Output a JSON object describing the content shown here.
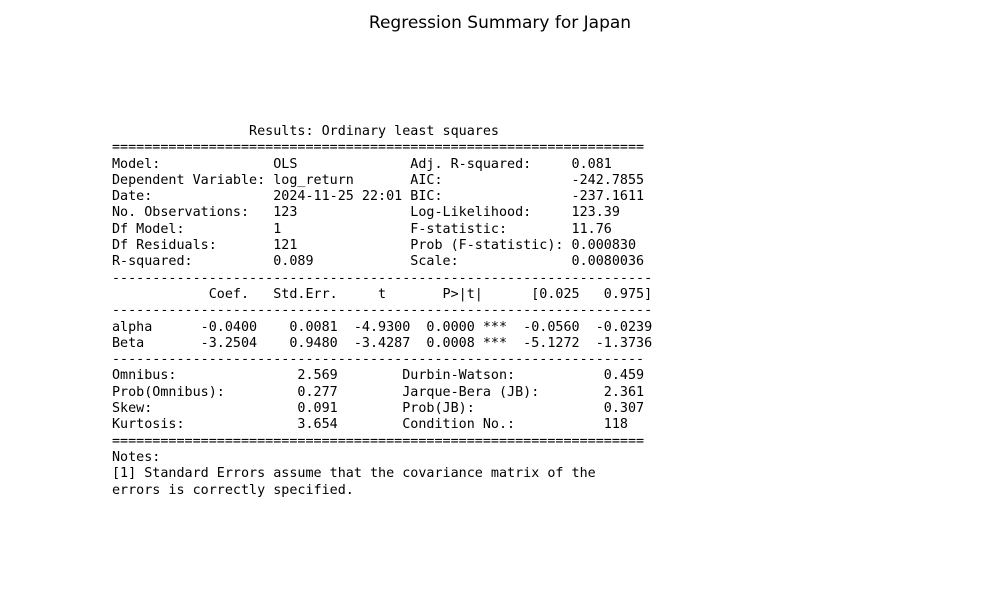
{
  "title": "Regression Summary for Japan",
  "summary_lines": [
    "                 Results: Ordinary least squares",
    "==================================================================",
    "Model:              OLS              Adj. R-squared:     0.081",
    "Dependent Variable: log_return       AIC:                -242.7855",
    "Date:               2024-11-25 22:01 BIC:                -237.1611",
    "No. Observations:   123              Log-Likelihood:     123.39",
    "Df Model:           1                F-statistic:        11.76",
    "Df Residuals:       121              Prob (F-statistic): 0.000830",
    "R-squared:          0.089            Scale:              0.0080036",
    "-------------------------------------------------------------------",
    "            Coef.   Std.Err.     t       P>|t|      [0.025   0.975]",
    "-------------------------------------------------------------------",
    "alpha      -0.0400    0.0081  -4.9300  0.0000 ***  -0.0560  -0.0239",
    "Beta       -3.2504    0.9480  -3.4287  0.0008 ***  -5.1272  -1.3736",
    "------------------------------------------------------------------",
    "Omnibus:               2.569        Durbin-Watson:           0.459",
    "Prob(Omnibus):         0.277        Jarque-Bera (JB):        2.361",
    "Skew:                  0.091        Prob(JB):                0.307",
    "Kurtosis:              3.654        Condition No.:           118",
    "==================================================================",
    "Notes:",
    "[1] Standard Errors assume that the covariance matrix of the",
    "errors is correctly specified."
  ]
}
